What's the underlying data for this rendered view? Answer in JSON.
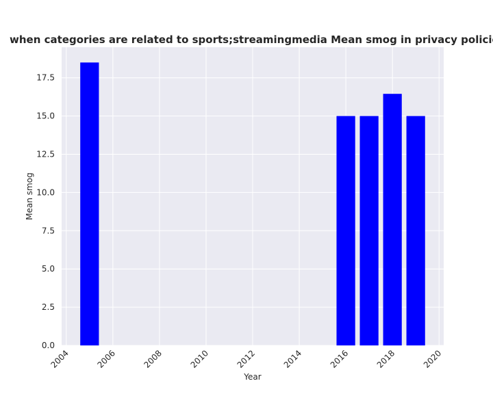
{
  "chart_data": {
    "type": "bar",
    "title": "when categories are related to sports;streamingmedia Mean smog in privacy policies by Year",
    "xlabel": "Year",
    "ylabel": "Mean smog",
    "x": [
      2005,
      2016,
      2017,
      2018,
      2019
    ],
    "values": [
      18.5,
      15.0,
      15.0,
      16.45,
      15.0
    ],
    "bar_width": 0.8,
    "xlim": [
      2003.8,
      2020.2
    ],
    "ylim": [
      0,
      19.5
    ],
    "xticks": [
      2004,
      2006,
      2008,
      2010,
      2012,
      2014,
      2016,
      2018,
      2020
    ],
    "xtick_labels": [
      "2004",
      "2006",
      "2008",
      "2010",
      "2012",
      "2014",
      "2016",
      "2018",
      "2020"
    ],
    "yticks": [
      0,
      2.5,
      5,
      7.5,
      10,
      12.5,
      15,
      17.5
    ],
    "ytick_labels": [
      "0.0",
      "2.5",
      "5.0",
      "7.5",
      "10.0",
      "12.5",
      "15.0",
      "17.5"
    ],
    "xtick_rotation": 45,
    "grid": true,
    "colors": {
      "bar": "#0000ff",
      "plot_background": "#eaeaf2",
      "grid": "#ffffff",
      "text": "#262626"
    }
  }
}
